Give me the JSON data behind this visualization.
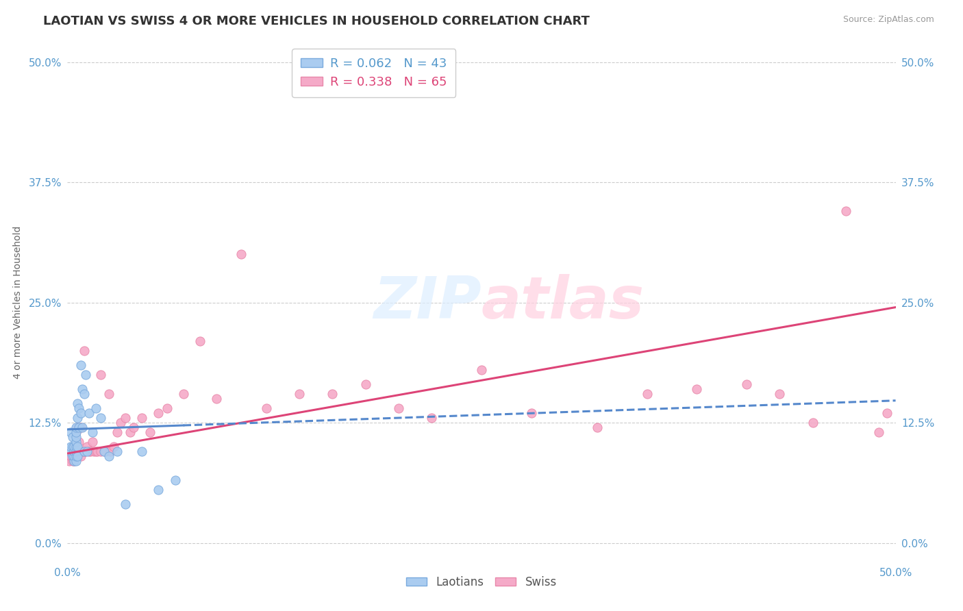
{
  "title": "LAOTIAN VS SWISS 4 OR MORE VEHICLES IN HOUSEHOLD CORRELATION CHART",
  "source": "Source: ZipAtlas.com",
  "ylabel": "4 or more Vehicles in Household",
  "xlim": [
    0.0,
    0.5
  ],
  "ylim": [
    -0.02,
    0.52
  ],
  "xtick_labels": [
    "0.0%",
    "50.0%"
  ],
  "ytick_labels": [
    "0.0%",
    "12.5%",
    "25.0%",
    "37.5%",
    "50.0%"
  ],
  "ytick_vals": [
    0.0,
    0.125,
    0.25,
    0.375,
    0.5
  ],
  "xtick_vals": [
    0.0,
    0.5
  ],
  "legend_laotian_R": "R = 0.062",
  "legend_laotian_N": "N = 43",
  "legend_swiss_R": "R = 0.338",
  "legend_swiss_N": "N = 65",
  "laotian_color": "#aaccf0",
  "swiss_color": "#f5aac8",
  "laotian_edge_color": "#7aaadd",
  "swiss_edge_color": "#e888aa",
  "laotian_line_color": "#5588cc",
  "swiss_line_color": "#dd4477",
  "background_color": "#ffffff",
  "grid_color": "#cccccc",
  "laotian_x": [
    0.001,
    0.002,
    0.002,
    0.003,
    0.003,
    0.003,
    0.004,
    0.004,
    0.004,
    0.004,
    0.005,
    0.005,
    0.005,
    0.005,
    0.005,
    0.005,
    0.005,
    0.005,
    0.006,
    0.006,
    0.006,
    0.006,
    0.007,
    0.007,
    0.008,
    0.008,
    0.009,
    0.009,
    0.01,
    0.01,
    0.011,
    0.012,
    0.013,
    0.015,
    0.017,
    0.02,
    0.022,
    0.025,
    0.03,
    0.035,
    0.045,
    0.055,
    0.065
  ],
  "laotian_y": [
    0.095,
    0.1,
    0.115,
    0.09,
    0.1,
    0.11,
    0.085,
    0.09,
    0.095,
    0.1,
    0.085,
    0.09,
    0.095,
    0.1,
    0.105,
    0.11,
    0.115,
    0.12,
    0.09,
    0.1,
    0.13,
    0.145,
    0.12,
    0.14,
    0.135,
    0.185,
    0.12,
    0.16,
    0.095,
    0.155,
    0.175,
    0.095,
    0.135,
    0.115,
    0.14,
    0.13,
    0.095,
    0.09,
    0.095,
    0.04,
    0.095,
    0.055,
    0.065
  ],
  "swiss_x": [
    0.001,
    0.002,
    0.002,
    0.003,
    0.003,
    0.004,
    0.004,
    0.005,
    0.005,
    0.006,
    0.006,
    0.006,
    0.007,
    0.007,
    0.008,
    0.008,
    0.009,
    0.009,
    0.01,
    0.01,
    0.011,
    0.012,
    0.013,
    0.014,
    0.015,
    0.016,
    0.017,
    0.018,
    0.02,
    0.02,
    0.022,
    0.023,
    0.025,
    0.026,
    0.028,
    0.03,
    0.032,
    0.035,
    0.038,
    0.04,
    0.045,
    0.05,
    0.055,
    0.06,
    0.07,
    0.08,
    0.09,
    0.105,
    0.12,
    0.14,
    0.16,
    0.18,
    0.2,
    0.22,
    0.25,
    0.28,
    0.32,
    0.35,
    0.38,
    0.41,
    0.43,
    0.45,
    0.47,
    0.49,
    0.495
  ],
  "swiss_y": [
    0.085,
    0.09,
    0.095,
    0.085,
    0.095,
    0.085,
    0.09,
    0.1,
    0.115,
    0.09,
    0.095,
    0.12,
    0.095,
    0.105,
    0.09,
    0.12,
    0.095,
    0.095,
    0.095,
    0.2,
    0.095,
    0.1,
    0.095,
    0.095,
    0.105,
    0.095,
    0.095,
    0.095,
    0.095,
    0.175,
    0.095,
    0.095,
    0.155,
    0.095,
    0.1,
    0.115,
    0.125,
    0.13,
    0.115,
    0.12,
    0.13,
    0.115,
    0.135,
    0.14,
    0.155,
    0.21,
    0.15,
    0.3,
    0.14,
    0.155,
    0.155,
    0.165,
    0.14,
    0.13,
    0.18,
    0.135,
    0.12,
    0.155,
    0.16,
    0.165,
    0.155,
    0.125,
    0.345,
    0.115,
    0.135
  ],
  "laotian_trend_x": [
    0.0,
    0.5
  ],
  "laotian_trend_y": [
    0.118,
    0.148
  ],
  "laotian_trend_solid_end": 0.07,
  "swiss_trend_x": [
    0.0,
    0.5
  ],
  "swiss_trend_y": [
    0.093,
    0.245
  ],
  "title_fontsize": 13,
  "axis_label_fontsize": 10,
  "tick_fontsize": 11,
  "legend_fontsize": 13,
  "source_fontsize": 9
}
